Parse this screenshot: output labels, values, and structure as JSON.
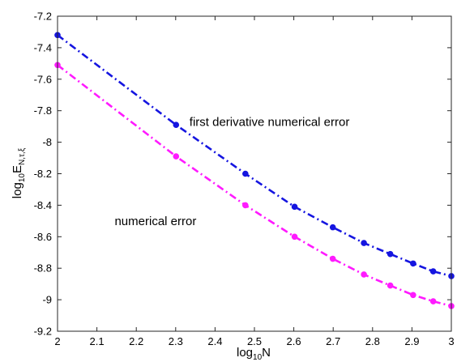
{
  "chart_data": {
    "type": "line",
    "title": "",
    "xlabel": {
      "base": "log",
      "sub": "10",
      "main": "N"
    },
    "ylabel": {
      "base": "log",
      "sub": "10",
      "main": "E",
      "sub2": "N,τ,ξ"
    },
    "xlim": [
      2,
      3
    ],
    "ylim": [
      -9.2,
      -7.2
    ],
    "xticks": [
      2,
      2.1,
      2.2,
      2.3,
      2.4,
      2.5,
      2.6,
      2.7,
      2.8,
      2.9,
      3
    ],
    "xtick_labels": [
      "2",
      "2.1",
      "2.2",
      "2.3",
      "2.4",
      "2.5",
      "2.6",
      "2.7",
      "2.8",
      "2.9",
      "3"
    ],
    "yticks": [
      -7.2,
      -7.4,
      -7.6,
      -7.8,
      -8,
      -8.2,
      -8.4,
      -8.6,
      -8.8,
      -9,
      -9.2
    ],
    "ytick_labels": [
      "-7.2",
      "-7.4",
      "-7.6",
      "-7.8",
      "-8",
      "-8.2",
      "-8.4",
      "-8.6",
      "-8.8",
      "-9",
      "-9.2"
    ],
    "grid": false,
    "x": [
      2,
      2.301,
      2.477,
      2.602,
      2.699,
      2.778,
      2.845,
      2.903,
      2.954,
      3
    ],
    "series": [
      {
        "values": [
          -7.32,
          -7.89,
          -8.2,
          -8.41,
          -8.54,
          -8.64,
          -8.71,
          -8.77,
          -8.82,
          -8.85
        ],
        "color": "#1515e0",
        "line_style": "dash-dot",
        "marker": "circle"
      },
      {
        "values": [
          -7.51,
          -8.09,
          -8.4,
          -8.6,
          -8.74,
          -8.84,
          -8.91,
          -8.97,
          -9.01,
          -9.04
        ],
        "color": "#ff1aff",
        "line_style": "dash-dot",
        "marker": "circle"
      }
    ],
    "annotations": [
      {
        "text": "first derivative numerical error",
        "x": 2.335,
        "y": -7.87
      },
      {
        "text": "numerical error",
        "x": 2.145,
        "y": -8.5
      }
    ]
  }
}
